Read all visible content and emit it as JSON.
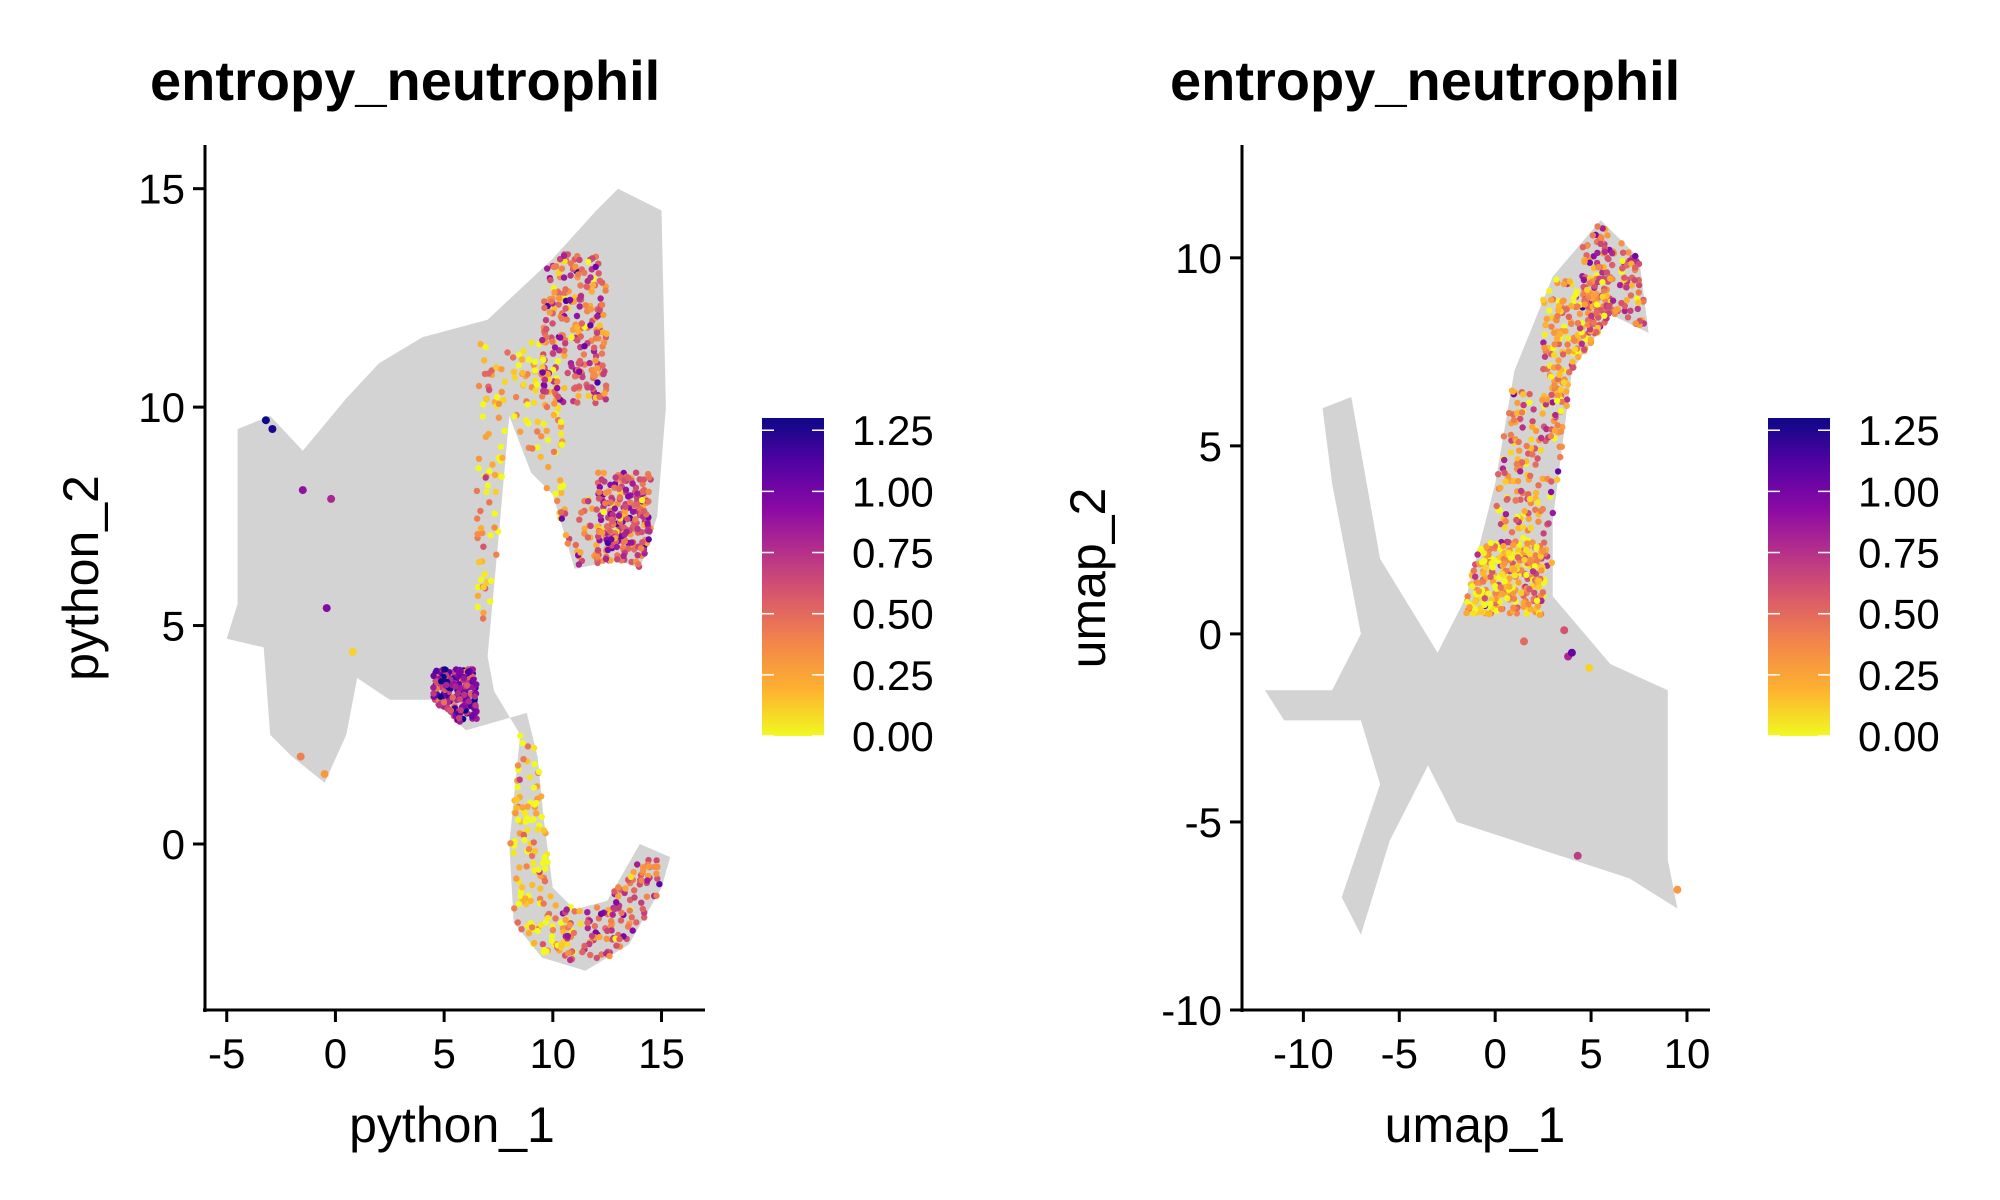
{
  "chart_data": [
    {
      "type": "scatter",
      "title": "entropy_neutrophil",
      "xlabel": "python_1",
      "ylabel": "python_2",
      "xlim": [
        -6,
        17
      ],
      "ylim": [
        -3.8,
        16
      ],
      "xticks": [
        -5,
        0,
        5,
        10,
        15
      ],
      "yticks": [
        0,
        5,
        10,
        15
      ],
      "xtick_labels": [
        "-5",
        "0",
        "5",
        "10",
        "15"
      ],
      "ytick_labels": [
        "0",
        "5",
        "10",
        "15"
      ],
      "background_color": "#d3d3d3",
      "background_shape": [
        [
          -5,
          4.7
        ],
        [
          -4.5,
          5.5
        ],
        [
          -4.5,
          9.5
        ],
        [
          -3,
          9.8
        ],
        [
          -1.5,
          9
        ],
        [
          0.5,
          10.2
        ],
        [
          2,
          11
        ],
        [
          4,
          11.6
        ],
        [
          7,
          12
        ],
        [
          10,
          13.4
        ],
        [
          12,
          14.5
        ],
        [
          13,
          15
        ],
        [
          15,
          14.5
        ],
        [
          15.2,
          10
        ],
        [
          14.8,
          7.5
        ],
        [
          14,
          6.3
        ],
        [
          13,
          6.5
        ],
        [
          11,
          6.3
        ],
        [
          10,
          8
        ],
        [
          9,
          8.5
        ],
        [
          8,
          9.8
        ],
        [
          7.5,
          7
        ],
        [
          7,
          4.3
        ],
        [
          7.3,
          3.5
        ],
        [
          8.5,
          2.5
        ],
        [
          8,
          0
        ],
        [
          8.2,
          -1.8
        ],
        [
          9.5,
          -2.6
        ],
        [
          11.5,
          -2.9
        ],
        [
          13.5,
          -2.3
        ],
        [
          15,
          -1
        ],
        [
          15.4,
          -0.3
        ],
        [
          14,
          0
        ],
        [
          12.5,
          -1.3
        ],
        [
          11,
          -1.5
        ],
        [
          10,
          -1
        ],
        [
          9.6,
          0.5
        ],
        [
          9.3,
          2
        ],
        [
          8.8,
          3
        ],
        [
          6,
          2.6
        ],
        [
          4.5,
          3.3
        ],
        [
          2.5,
          3.3
        ],
        [
          1,
          3.8
        ],
        [
          0.5,
          2.5
        ],
        [
          -0.5,
          1.4
        ],
        [
          -2,
          2
        ],
        [
          -3,
          2.5
        ],
        [
          -3.3,
          4.5
        ]
      ],
      "colored_regions": [
        {
          "x_range": [
            6.5,
            10.5
          ],
          "y_range": [
            5,
            11.5
          ],
          "mean": 0.15
        },
        {
          "x_range": [
            8.5,
            13.5
          ],
          "y_range": [
            4,
            8
          ],
          "mean": 0.45
        },
        {
          "x_range": [
            8,
            11
          ],
          "y_range": [
            -2.5,
            2.5
          ],
          "mean": 0.1
        },
        {
          "x_range": [
            10.5,
            15
          ],
          "y_range": [
            -2.8,
            -0.3
          ],
          "mean": 0.55
        },
        {
          "x_range": [
            4.5,
            6.5
          ],
          "y_range": [
            2.8,
            4
          ],
          "mean": 0.9
        },
        {
          "x_range": [
            12,
            14.5
          ],
          "y_range": [
            6,
            8.5
          ],
          "mean": 0.6
        },
        {
          "x_range": [
            9.5,
            12.5
          ],
          "y_range": [
            10,
            13.5
          ],
          "mean": 0.5
        }
      ],
      "outlier_points": [
        {
          "x": -3.2,
          "y": 9.7,
          "value": 1.3
        },
        {
          "x": -2.9,
          "y": 9.5,
          "value": 1.25
        },
        {
          "x": -1.5,
          "y": 8.1,
          "value": 0.9
        },
        {
          "x": -0.2,
          "y": 7.9,
          "value": 0.8
        },
        {
          "x": -0.4,
          "y": 5.4,
          "value": 0.95
        },
        {
          "x": -0.5,
          "y": 1.6,
          "value": 0.3
        },
        {
          "x": -1.6,
          "y": 2.0,
          "value": 0.4
        },
        {
          "x": 0.8,
          "y": 4.4,
          "value": 0.1
        }
      ],
      "colorbar": {
        "min": 0,
        "max": 1.3,
        "ticks": [
          0,
          0.25,
          0.5,
          0.75,
          1,
          1.25
        ],
        "tick_labels": [
          "0.00",
          "0.25",
          "0.50",
          "0.75",
          "1.00",
          "1.25"
        ],
        "colormap": "plasma",
        "colors": [
          "#f0f921",
          "#fdb32f",
          "#f48849",
          "#db5c68",
          "#b83289",
          "#8b0aa5",
          "#5302a3",
          "#0d0887"
        ]
      }
    },
    {
      "type": "scatter",
      "title": "entropy_neutrophil",
      "xlabel": "umap_1",
      "ylabel": "umap_2",
      "xlim": [
        -13.2,
        11.2
      ],
      "ylim": [
        -10,
        13
      ],
      "xticks": [
        -10,
        -5,
        0,
        5,
        10
      ],
      "yticks": [
        -10,
        -5,
        0,
        5,
        10
      ],
      "xtick_labels": [
        "-10",
        "-5",
        "0",
        "5",
        "10"
      ],
      "ytick_labels": [
        "-10",
        "-5",
        "0",
        "5",
        "10"
      ],
      "background_color": "#d3d3d3",
      "background_shape": [
        [
          -12,
          -1.5
        ],
        [
          -8.5,
          -1.5
        ],
        [
          -7,
          0
        ],
        [
          -8.5,
          4
        ],
        [
          -9,
          6
        ],
        [
          -7.5,
          6.3
        ],
        [
          -6,
          2
        ],
        [
          -3,
          -0.5
        ],
        [
          -1.5,
          1
        ],
        [
          0,
          4
        ],
        [
          1,
          7
        ],
        [
          3,
          9.5
        ],
        [
          5.5,
          11
        ],
        [
          7.5,
          10
        ],
        [
          8,
          8
        ],
        [
          6,
          8.5
        ],
        [
          4,
          7
        ],
        [
          3,
          3
        ],
        [
          3,
          1
        ],
        [
          6,
          -0.8
        ],
        [
          9,
          -1.5
        ],
        [
          9,
          -6
        ],
        [
          9.5,
          -7.3
        ],
        [
          7,
          -6.5
        ],
        [
          4,
          -6
        ],
        [
          1,
          -5.5
        ],
        [
          -2,
          -5
        ],
        [
          -3.5,
          -3.5
        ],
        [
          -5.5,
          -5.5
        ],
        [
          -7,
          -8
        ],
        [
          -8,
          -7
        ],
        [
          -6,
          -4
        ],
        [
          -7,
          -2.3
        ],
        [
          -11,
          -2.3
        ]
      ],
      "colored_regions": [
        {
          "x_range": [
            4.5,
            7.8
          ],
          "y_range": [
            7.5,
            11
          ],
          "mean": 0.45
        },
        {
          "x_range": [
            2.5,
            6
          ],
          "y_range": [
            6,
            9.5
          ],
          "mean": 0.3
        },
        {
          "x_range": [
            0,
            3.5
          ],
          "y_range": [
            1,
            6.5
          ],
          "mean": 0.35
        },
        {
          "x_range": [
            -1.5,
            2.5
          ],
          "y_range": [
            0.5,
            2.5
          ],
          "mean": 0.2
        }
      ],
      "outlier_points": [
        {
          "x": 3.8,
          "y": -0.6,
          "value": 0.8
        },
        {
          "x": 4.0,
          "y": -0.5,
          "value": 1.05
        },
        {
          "x": 1.5,
          "y": -0.2,
          "value": 0.5
        },
        {
          "x": 4.9,
          "y": -0.9,
          "value": 0.1
        },
        {
          "x": 4.3,
          "y": -5.9,
          "value": 0.7
        },
        {
          "x": 9.5,
          "y": -6.8,
          "value": 0.3
        },
        {
          "x": 3.6,
          "y": 0.1,
          "value": 0.6
        }
      ],
      "colorbar": {
        "min": 0,
        "max": 1.3,
        "ticks": [
          0,
          0.25,
          0.5,
          0.75,
          1,
          1.25
        ],
        "tick_labels": [
          "0.00",
          "0.25",
          "0.50",
          "0.75",
          "1.00",
          "1.25"
        ],
        "colormap": "plasma",
        "colors": [
          "#f0f921",
          "#fdb32f",
          "#f48849",
          "#db5c68",
          "#b83289",
          "#8b0aa5",
          "#5302a3",
          "#0d0887"
        ]
      }
    }
  ]
}
